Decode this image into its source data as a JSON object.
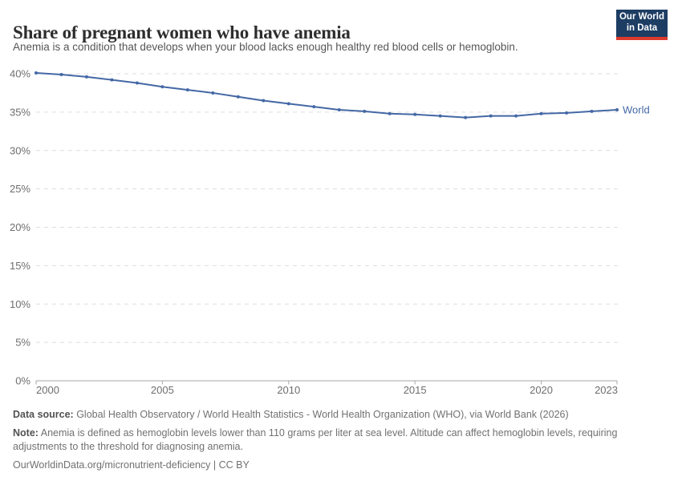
{
  "header": {
    "title": "Share of pregnant women who have anemia",
    "subtitle": "Anemia is a condition that develops when your blood lacks enough healthy red blood cells or hemoglobin.",
    "logo": {
      "line1": "Our World",
      "line2": "in Data",
      "bg_color": "#1d3d63",
      "accent_color": "#d93a2d"
    }
  },
  "chart_data": {
    "type": "line",
    "title": "Share of pregnant women who have anemia",
    "x": [
      2000,
      2001,
      2002,
      2003,
      2004,
      2005,
      2006,
      2007,
      2008,
      2009,
      2010,
      2011,
      2012,
      2013,
      2014,
      2015,
      2016,
      2017,
      2018,
      2019,
      2020,
      2021,
      2022,
      2023
    ],
    "series": [
      {
        "name": "World",
        "color": "#4468a5",
        "values": [
          40.1,
          39.9,
          39.6,
          39.2,
          38.8,
          38.3,
          37.9,
          37.5,
          37.0,
          36.5,
          36.1,
          35.7,
          35.3,
          35.1,
          34.8,
          34.7,
          34.5,
          34.3,
          34.5,
          34.5,
          34.8,
          34.9,
          35.1,
          35.3
        ]
      }
    ],
    "xlabel": "",
    "ylabel": "",
    "ylim": [
      0,
      40
    ],
    "ytick_step": 5,
    "ytick_suffix": "%",
    "xticks": [
      2000,
      2005,
      2010,
      2015,
      2020,
      2023
    ],
    "grid": "horizontal-dashed",
    "legend_position": "end-of-line",
    "colors": {
      "gridline": "#dedede",
      "axis": "#a6a6a6",
      "tick_text": "#6e6e6e"
    }
  },
  "footer": {
    "data_source_label": "Data source:",
    "data_source": " Global Health Observatory / World Health Statistics - World Health Organization (WHO), via World Bank (2026)",
    "note_label": "Note:",
    "note": " Anemia is defined as hemoglobin levels lower than 110 grams per liter at sea level. Altitude can affect hemoglobin levels, requiring adjustments to the threshold for diagnosing anemia.",
    "url": "OurWorldinData.org/micronutrient-deficiency",
    "separator": " | ",
    "license": "CC BY"
  }
}
